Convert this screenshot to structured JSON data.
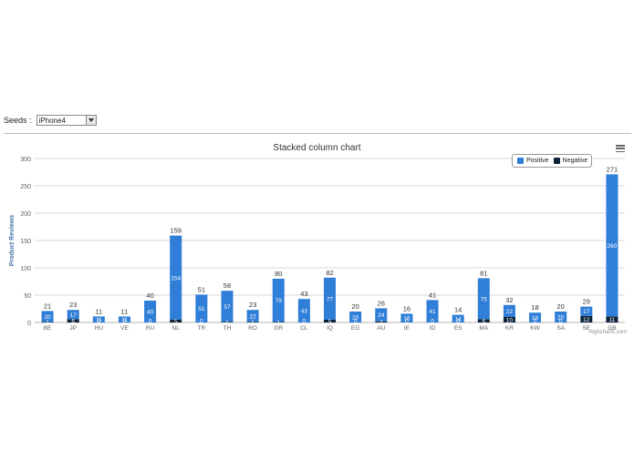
{
  "seeds": {
    "label": "Seeds :",
    "selected": "iPhone4"
  },
  "credit": "Highcharts.com",
  "chart_data": {
    "type": "bar",
    "stacked": true,
    "title": "Stacked column chart",
    "xlabel": "",
    "ylabel": "Product Reviews",
    "ylim": [
      0,
      300
    ],
    "yticks": [
      0,
      50,
      100,
      150,
      200,
      250,
      300
    ],
    "grid": true,
    "legend_position": "top-right",
    "categories": [
      "BE",
      "JP",
      "HU",
      "VE",
      "RU",
      "NL",
      "TR",
      "TH",
      "RO",
      "GR",
      "CL",
      "IQ",
      "EG",
      "AU",
      "IE",
      "ID",
      "ES",
      "MA",
      "KR",
      "KW",
      "SA",
      "SE",
      "GB"
    ],
    "series": [
      {
        "name": "Positive",
        "color": "#2f7ed8",
        "values": [
          20,
          17,
          11,
          11,
          40,
          154,
          51,
          57,
          22,
          79,
          43,
          77,
          20,
          24,
          16,
          41,
          14,
          75,
          22,
          18,
          20,
          17,
          260
        ]
      },
      {
        "name": "Negative",
        "color": "#0d233a",
        "values": [
          1,
          6,
          0,
          0,
          0,
          5,
          0,
          1,
          1,
          1,
          0,
          5,
          0,
          2,
          0,
          0,
          0,
          6,
          10,
          0,
          0,
          12,
          11
        ]
      }
    ],
    "totals": [
      21,
      23,
      11,
      11,
      40,
      159,
      51,
      58,
      23,
      80,
      43,
      82,
      20,
      26,
      16,
      41,
      14,
      81,
      32,
      18,
      20,
      29,
      271
    ]
  }
}
